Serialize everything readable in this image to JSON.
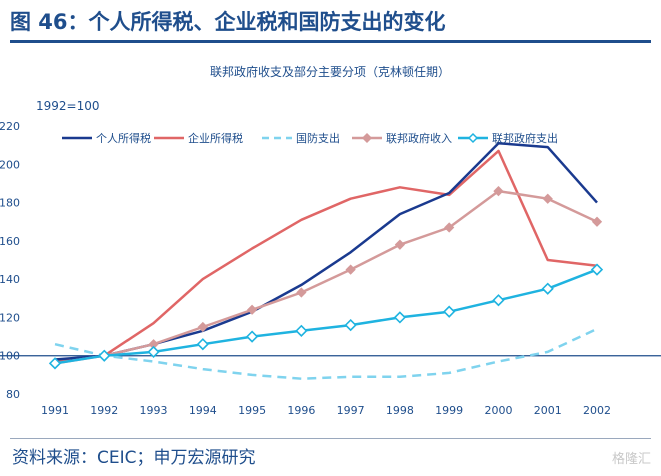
{
  "header": {
    "title": "图 46：个人所得税、企业税和国防支出的变化"
  },
  "footer": {
    "source": "资料来源：CEIC；申万宏源研究",
    "watermark": "格隆汇"
  },
  "colors": {
    "personal_tax": "#1a3a8f",
    "corporate_tax": "#e06666",
    "defense": "#7fd3ee",
    "revenue": "#d49a9a",
    "spending": "#1fb3e0",
    "title": "#1f4e8c",
    "baseline": "#1f4e8c"
  },
  "chart_data": {
    "type": "line",
    "title": "联邦政府收支及部分主要分项（克林顿任期）",
    "base_label": "1992=100",
    "x": [
      "1991",
      "1992",
      "1993",
      "1994",
      "1995",
      "1996",
      "1997",
      "1998",
      "1999",
      "2000",
      "2001",
      "2002"
    ],
    "ylim": [
      80,
      220
    ],
    "yticks": [
      80,
      100,
      120,
      140,
      160,
      180,
      200,
      220
    ],
    "baseline": 100,
    "legend_position": "top",
    "series": [
      {
        "name": "个人所得税",
        "key": "personal_tax",
        "style": "solid",
        "marker": "none",
        "values": [
          98,
          100,
          106,
          113,
          123,
          137,
          154,
          174,
          185,
          211,
          209,
          180
        ]
      },
      {
        "name": "企业所得税",
        "key": "corporate_tax",
        "style": "solid",
        "marker": "none",
        "values": [
          97,
          100,
          117,
          140,
          156,
          171,
          182,
          188,
          184,
          207,
          150,
          147
        ]
      },
      {
        "name": "国防支出",
        "key": "defense",
        "style": "dashed",
        "marker": "none",
        "values": [
          106,
          100,
          97,
          93,
          90,
          88,
          89,
          89,
          91,
          97,
          102,
          114
        ]
      },
      {
        "name": "联邦政府收入",
        "key": "revenue",
        "style": "solid",
        "marker": "diamond-filled",
        "values": [
          96,
          100,
          106,
          115,
          124,
          133,
          145,
          158,
          167,
          186,
          182,
          170
        ]
      },
      {
        "name": "联邦政府支出",
        "key": "spending",
        "style": "solid",
        "marker": "diamond-open",
        "values": [
          96,
          100,
          102,
          106,
          110,
          113,
          116,
          120,
          123,
          129,
          135,
          145
        ]
      }
    ]
  }
}
